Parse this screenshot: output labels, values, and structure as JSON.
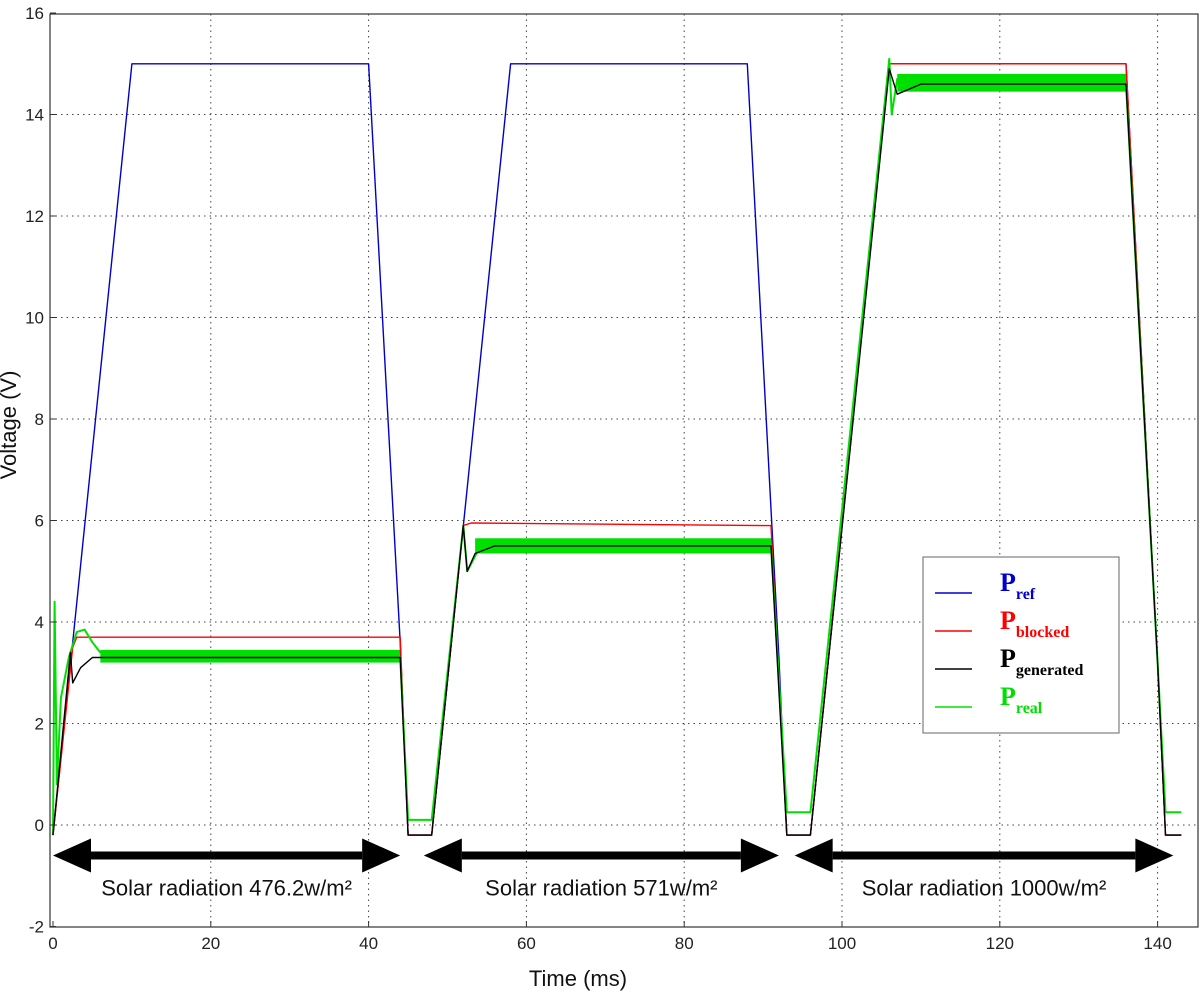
{
  "chart_data": {
    "type": "line",
    "title": "",
    "xlabel": "Time (ms)",
    "ylabel": "Voltage (V)",
    "xlim": [
      0,
      143
    ],
    "ylim": [
      -2,
      16
    ],
    "x_ticks": [
      0,
      20,
      40,
      60,
      80,
      100,
      120,
      140
    ],
    "y_ticks": [
      -2,
      0,
      2,
      4,
      6,
      8,
      10,
      12,
      14,
      16
    ],
    "grid": true,
    "legend_position": "right",
    "series": [
      {
        "key": "ref",
        "name_main": "P",
        "name_sub": "ref",
        "color": "#0000cc",
        "x": [
          0,
          10,
          40,
          44,
          45,
          48,
          58,
          88,
          92,
          93,
          96,
          106,
          136,
          140,
          141,
          143
        ],
        "y": [
          -0.2,
          15,
          15,
          3.6,
          -0.2,
          -0.2,
          15,
          15,
          3.3,
          -0.2,
          -0.2,
          15,
          15,
          3.2,
          -0.2,
          -0.2
        ]
      },
      {
        "key": "blocked",
        "name_main": "P",
        "name_sub": "blocked",
        "color": "#ff0000",
        "x": [
          0,
          2.5,
          3,
          44,
          45,
          48,
          52,
          53,
          91,
          93,
          96,
          106,
          136,
          140,
          141,
          143
        ],
        "y": [
          -0.2,
          3.5,
          3.7,
          3.7,
          -0.2,
          -0.2,
          5.9,
          5.95,
          5.9,
          -0.2,
          -0.2,
          15,
          15,
          3.2,
          -0.2,
          -0.2
        ]
      },
      {
        "key": "generated",
        "name_main": "P",
        "name_sub": "generated",
        "color": "#000000",
        "x": [
          0,
          2.2,
          2.5,
          3.5,
          5,
          8,
          44,
          45,
          48,
          52,
          52.5,
          53.5,
          56,
          91,
          93,
          96,
          106,
          107,
          110,
          136,
          140,
          141,
          143
        ],
        "y": [
          -0.2,
          3.4,
          2.8,
          3.1,
          3.3,
          3.3,
          3.3,
          -0.2,
          -0.2,
          5.9,
          5.0,
          5.35,
          5.5,
          5.5,
          -0.2,
          -0.2,
          14.9,
          14.4,
          14.6,
          14.6,
          3.2,
          -0.2,
          -0.2
        ]
      },
      {
        "key": "real",
        "name_main": "P",
        "name_sub": "real",
        "color": "#00e000",
        "x": [
          0,
          0.2,
          0.5,
          1,
          2,
          3,
          4,
          5,
          6,
          44,
          45,
          48,
          52,
          52.5,
          54,
          56,
          91,
          93,
          96,
          106,
          106.3,
          107,
          110,
          136,
          140,
          141,
          143
        ],
        "y": [
          -0.2,
          4.4,
          0.8,
          2.5,
          3.3,
          3.8,
          3.85,
          3.6,
          3.4,
          3.3,
          0.1,
          0.1,
          5.9,
          5.0,
          5.45,
          5.5,
          5.5,
          0.25,
          0.25,
          15.1,
          14.0,
          14.7,
          14.6,
          14.6,
          3.2,
          0.25,
          0.25
        ],
        "band": [
          {
            "x0": 6,
            "x1": 44,
            "y_low": 3.2,
            "y_high": 3.45
          },
          {
            "x0": 53.5,
            "x1": 91,
            "y_low": 5.35,
            "y_high": 5.65
          },
          {
            "x0": 107,
            "x1": 136,
            "y_low": 14.45,
            "y_high": 14.8
          }
        ]
      }
    ],
    "annotations": [
      {
        "text": "Solar radiation 476.2w/m²",
        "x_start": 0,
        "x_end": 44
      },
      {
        "text": "Solar radiation 571w/m²",
        "x_start": 47,
        "x_end": 92
      },
      {
        "text": "Solar radiation 1000w/m²",
        "x_start": 94,
        "x_end": 142
      }
    ],
    "annotation_arrow_y": -0.6
  }
}
